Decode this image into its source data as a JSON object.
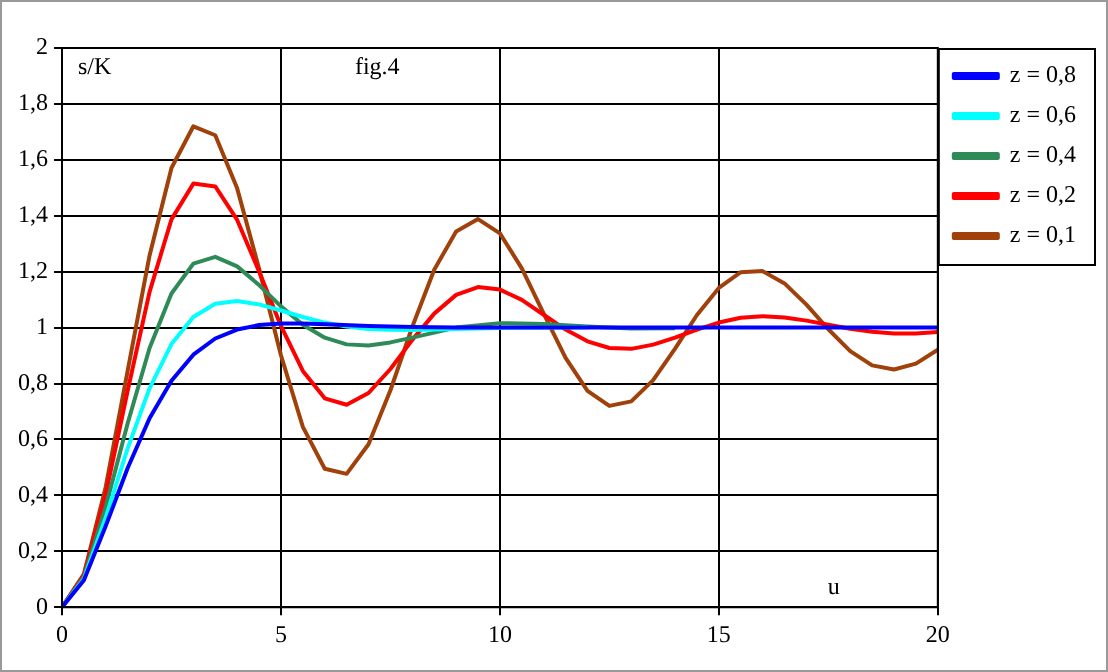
{
  "chart_data": {
    "type": "line",
    "title": "fig.4",
    "xlabel": "u",
    "ylabel": "s/K",
    "xlim": [
      0,
      20
    ],
    "xticks": [
      0,
      5,
      10,
      15,
      20
    ],
    "ylim": [
      0,
      2
    ],
    "yticks": [
      0,
      {
        "value": 0.2,
        "label": "0,2"
      },
      {
        "value": 0.4,
        "label": "0,4"
      },
      {
        "value": 0.6,
        "label": "0,6"
      },
      {
        "value": 0.8,
        "label": "0,8"
      },
      1,
      {
        "value": 1.2,
        "label": "1,2"
      },
      {
        "value": 1.4,
        "label": "1,4"
      },
      {
        "value": 1.6,
        "label": "1,6"
      },
      {
        "value": 1.8,
        "label": "1,8"
      },
      2
    ],
    "grid": true,
    "legend": "top right",
    "marker": "none",
    "line_style": "solid",
    "series": [
      {
        "name": "z = 0,8",
        "color": "#0000ff",
        "x": [
          0,
          0.5,
          1,
          1.5,
          2,
          2.5,
          3,
          3.5,
          4,
          4.5,
          5,
          5.5,
          6,
          7,
          8,
          9,
          10,
          12,
          14,
          16,
          18,
          20
        ],
        "values": [
          0,
          0.096,
          0.291,
          0.498,
          0.676,
          0.81,
          0.903,
          0.961,
          0.993,
          1.009,
          1.015,
          1.015,
          1.012,
          1.006,
          1.002,
          1,
          1,
          1,
          1,
          1,
          1,
          1
        ]
      },
      {
        "name": "z = 0,6",
        "color": "#00ffff",
        "x": [
          0,
          0.5,
          1,
          1.5,
          2,
          2.5,
          3,
          3.5,
          4,
          4.5,
          5,
          5.5,
          6,
          6.5,
          7,
          7.5,
          8,
          9,
          10,
          12
        ],
        "values": [
          0,
          0.101,
          0.322,
          0.568,
          0.783,
          0.941,
          1.038,
          1.085,
          1.095,
          1.083,
          1.061,
          1.038,
          1.018,
          1.004,
          0.995,
          0.992,
          0.991,
          0.995,
          0.999,
          1
        ]
      },
      {
        "name": "z = 0,4",
        "color": "#2e8b57",
        "x": [
          0,
          0.5,
          1,
          1.5,
          2,
          2.5,
          3,
          3.5,
          4,
          4.5,
          5,
          5.5,
          6,
          6.5,
          7,
          7.5,
          8,
          9,
          10,
          11,
          12,
          13,
          14
        ],
        "values": [
          0,
          0.108,
          0.36,
          0.658,
          0.927,
          1.122,
          1.229,
          1.253,
          1.219,
          1.152,
          1.076,
          1.01,
          0.964,
          0.94,
          0.936,
          0.947,
          0.964,
          1,
          1.016,
          1.013,
          1.004,
          0.997,
          0.998
        ]
      },
      {
        "name": "z = 0,2",
        "color": "#ff0000",
        "x": [
          0,
          0.5,
          1,
          1.5,
          2,
          2.5,
          3,
          3.5,
          4,
          4.5,
          5,
          5.5,
          6,
          6.5,
          7,
          7.5,
          8,
          8.5,
          9,
          9.5,
          10,
          10.5,
          11,
          11.5,
          12,
          12.5,
          13,
          13.5,
          14,
          14.5,
          15,
          15.5,
          16,
          16.5,
          17,
          17.5,
          18,
          18.5,
          19,
          19.5,
          20
        ],
        "values": [
          0,
          0.115,
          0.405,
          0.775,
          1.128,
          1.387,
          1.515,
          1.505,
          1.385,
          1.201,
          1.006,
          0.845,
          0.747,
          0.724,
          0.766,
          0.852,
          0.956,
          1.05,
          1.117,
          1.145,
          1.136,
          1.099,
          1.046,
          0.993,
          0.951,
          0.927,
          0.924,
          0.939,
          0.964,
          0.993,
          1.018,
          1.035,
          1.041,
          1.036,
          1.025,
          1.01,
          0.996,
          0.985,
          0.979,
          0.979,
          0.984
        ]
      },
      {
        "name": "z = 0,1",
        "color": "#a0400a",
        "x": [
          0,
          0.5,
          1,
          1.5,
          2,
          2.5,
          3,
          3.5,
          4,
          4.5,
          5,
          5.5,
          6,
          6.5,
          7,
          7.5,
          8,
          8.5,
          9,
          9.5,
          10,
          10.5,
          11,
          11.5,
          12,
          12.5,
          13,
          13.5,
          14,
          14.5,
          15,
          15.5,
          16,
          16.5,
          17,
          17.5,
          18,
          18.5,
          19,
          19.5,
          20
        ],
        "values": [
          0,
          0.118,
          0.431,
          0.846,
          1.258,
          1.571,
          1.72,
          1.688,
          1.498,
          1.211,
          0.901,
          0.645,
          0.495,
          0.477,
          0.583,
          0.776,
          1.003,
          1.207,
          1.344,
          1.388,
          1.337,
          1.212,
          1.05,
          0.892,
          0.774,
          0.72,
          0.736,
          0.812,
          0.925,
          1.045,
          1.142,
          1.198,
          1.202,
          1.158,
          1.082,
          0.994,
          0.916,
          0.865,
          0.85,
          0.871,
          0.921
        ]
      }
    ]
  }
}
